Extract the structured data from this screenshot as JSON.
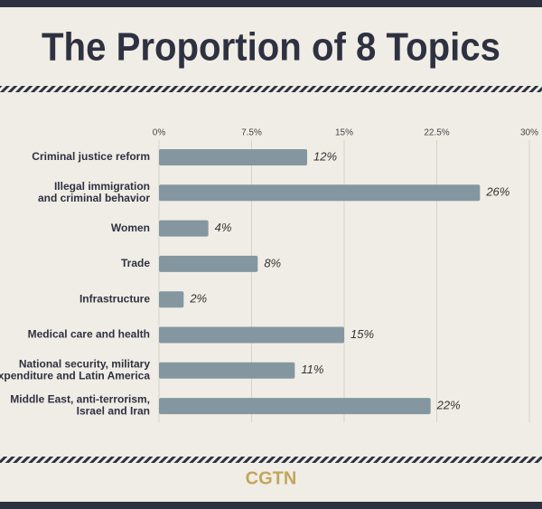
{
  "chart_data": {
    "type": "bar",
    "orientation": "horizontal",
    "title": "The Proportion of 8 Topics",
    "logo": "CGTN",
    "categories": [
      "Criminal justice reform",
      "Illegal immigration\nand criminal behavior",
      "Women",
      "Trade",
      "Infrastructure",
      "Medical care and health",
      "National security, military\nexpenditure and Latin America",
      "Middle East, anti-terrorism,\nIsrael and Iran"
    ],
    "values": [
      12,
      26,
      4,
      8,
      2,
      15,
      11,
      22
    ],
    "value_labels": [
      "12%",
      "26%",
      "4%",
      "8%",
      "2%",
      "15%",
      "11%",
      "22%"
    ],
    "color": "#8497a0",
    "xlim": [
      0,
      30
    ],
    "xticks": [
      {
        "value": 0,
        "label": "0%"
      },
      {
        "value": 7.5,
        "label": "7.5%"
      },
      {
        "value": 15,
        "label": "15%"
      },
      {
        "value": 22.5,
        "label": "22.5%"
      },
      {
        "value": 30,
        "label": "30%"
      }
    ],
    "grid": true
  }
}
